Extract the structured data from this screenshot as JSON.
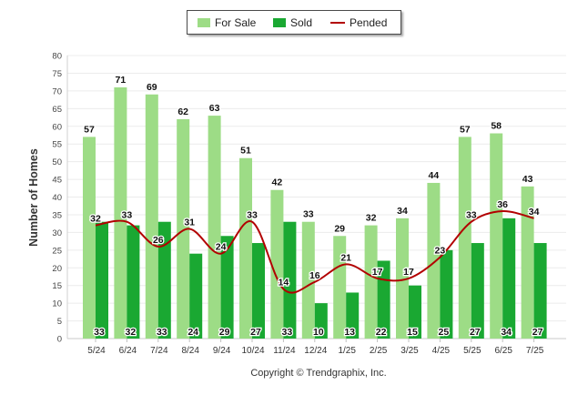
{
  "legend": [
    {
      "label": "For Sale",
      "color": "#9ddc86",
      "kind": "bar"
    },
    {
      "label": "Sold",
      "color": "#1aa832",
      "kind": "bar"
    },
    {
      "label": "Pended",
      "color": "#b20000",
      "kind": "line"
    }
  ],
  "copyright": "Copyright © Trendgraphix, Inc.",
  "chart_data": {
    "type": "bar",
    "ylabel": "Number of Homes",
    "ylim": [
      0,
      80
    ],
    "yticks": [
      "0",
      "5",
      "10",
      "15",
      "20",
      "25",
      "30",
      "35",
      "40",
      "45",
      "50",
      "55",
      "60",
      "65",
      "70",
      "75",
      "80"
    ],
    "grid": true,
    "legend_position": "top-center",
    "categories": [
      "5/24",
      "6/24",
      "7/24",
      "8/24",
      "9/24",
      "10/24",
      "11/24",
      "12/24",
      "1/25",
      "2/25",
      "3/25",
      "4/25",
      "5/25",
      "6/25",
      "7/25"
    ],
    "series": [
      {
        "name": "For Sale",
        "type": "bar",
        "color": "#9ddc86",
        "values": [
          57,
          71,
          69,
          62,
          63,
          51,
          42,
          33,
          29,
          32,
          34,
          44,
          57,
          58,
          43
        ]
      },
      {
        "name": "Sold",
        "type": "bar",
        "color": "#1aa832",
        "values": [
          33,
          32,
          33,
          24,
          29,
          27,
          33,
          10,
          13,
          22,
          15,
          25,
          27,
          34,
          27
        ]
      },
      {
        "name": "Pended",
        "type": "line",
        "color": "#b20000",
        "values": [
          32,
          33,
          26,
          31,
          24,
          33,
          14,
          16,
          21,
          17,
          17,
          23,
          33,
          36,
          34
        ]
      }
    ]
  }
}
